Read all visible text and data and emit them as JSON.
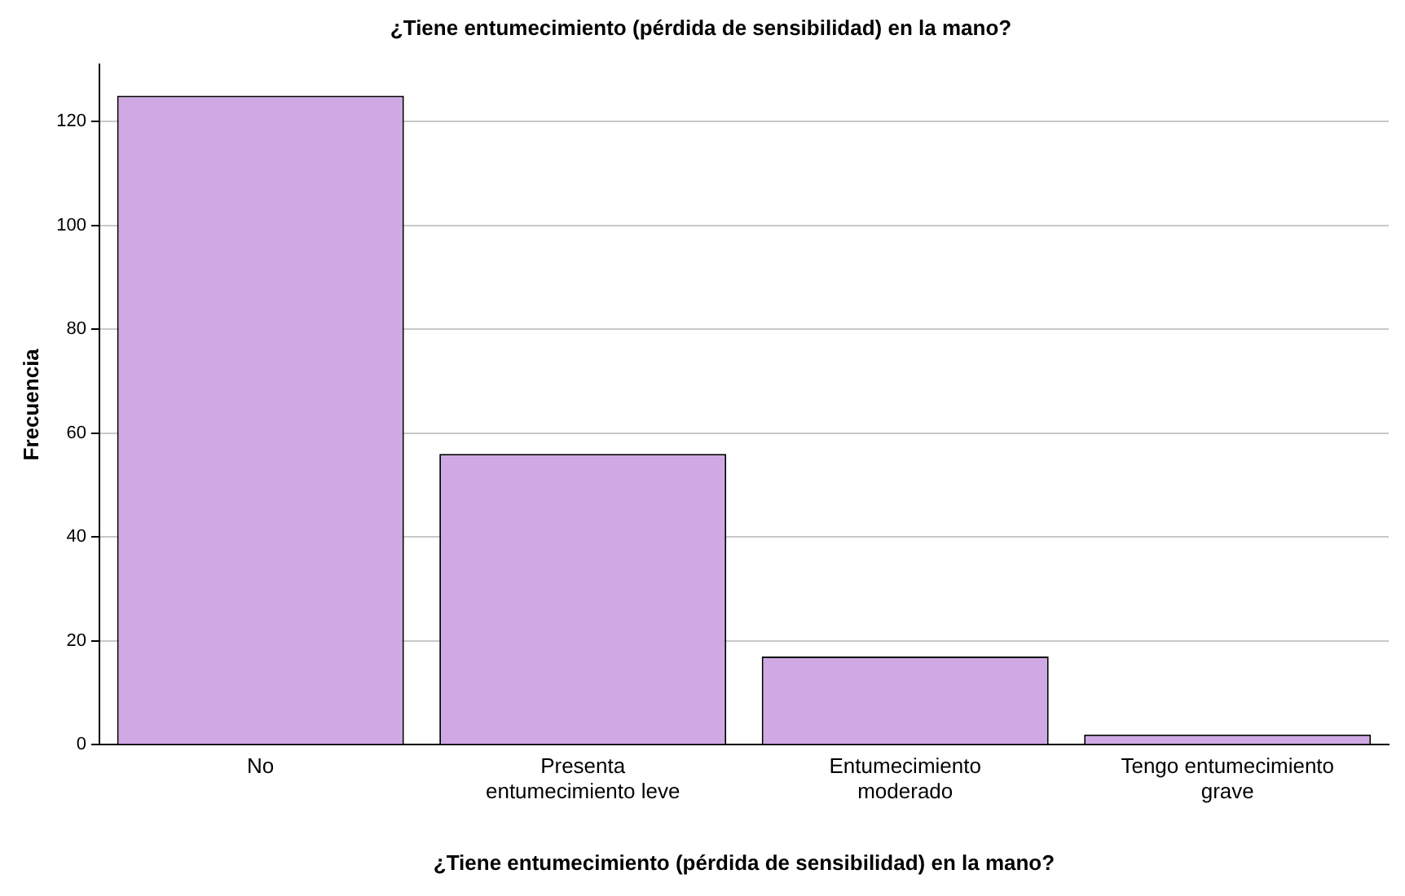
{
  "chart_data": {
    "type": "bar",
    "title": "¿Tiene entumecimiento (pérdida de sensibilidad) en la mano?",
    "xlabel": "¿Tiene entumecimiento (pérdida de sensibilidad) en la mano?",
    "ylabel": "Frecuencia",
    "categories": [
      "No",
      "Presenta entumecimiento leve",
      "Entumecimiento moderado",
      "Tengo entumecimiento grave"
    ],
    "values": [
      125,
      56,
      17,
      2
    ],
    "color": "#d0a9e4",
    "ylim": [
      0,
      131
    ],
    "yticks": [
      0,
      20,
      40,
      60,
      80,
      100,
      120
    ],
    "grid": "y",
    "legend": false
  }
}
